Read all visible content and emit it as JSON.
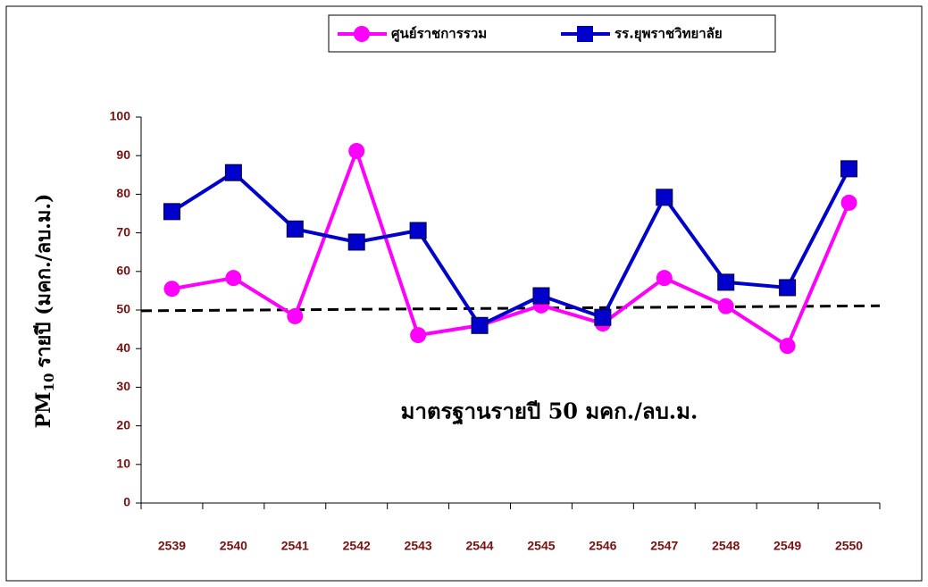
{
  "chart_data": {
    "type": "line",
    "categories": [
      "2539",
      "2540",
      "2541",
      "2542",
      "2543",
      "2544",
      "2545",
      "2546",
      "2547",
      "2548",
      "2549",
      "2550"
    ],
    "series": [
      {
        "name": "ศูนย์ราชการรวม",
        "color": "#ff00ff",
        "marker": "circle",
        "values": [
          55.5,
          58.3,
          48.4,
          91.2,
          43.5,
          46,
          51.2,
          46.5,
          58.3,
          51,
          40.7,
          77.8
        ]
      },
      {
        "name": "รร.ยุพราชวิทยาลัย",
        "color": "#0000cc",
        "marker": "square",
        "values": [
          75.5,
          85.6,
          71,
          67.6,
          70.6,
          46,
          53.7,
          48.1,
          79.2,
          57.2,
          55.8,
          86.6
        ]
      }
    ],
    "reference_line": [
      49.8,
      51.1
    ],
    "annotation": "มาตรฐานรายปี 50 มคก./ลบ.ม.",
    "y_label": {
      "main": "PM",
      "sub": "10",
      "rest": "รายปี (มคก./ลบ.ม.)"
    },
    "ylim": [
      0,
      100
    ],
    "yticks": [
      0,
      10,
      20,
      30,
      40,
      50,
      60,
      70,
      80,
      90,
      100
    ]
  }
}
